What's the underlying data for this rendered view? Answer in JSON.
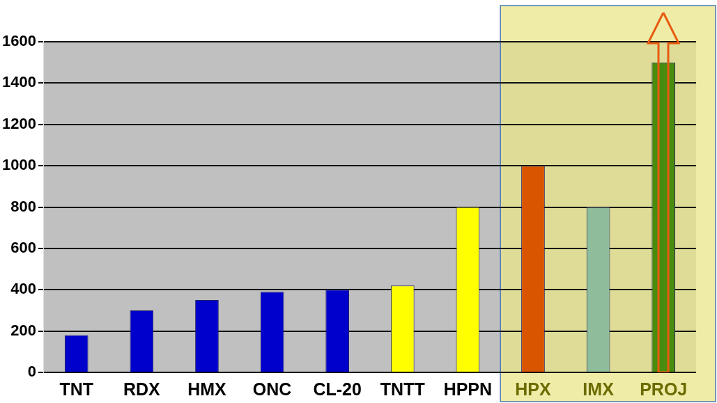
{
  "chart_data": {
    "type": "bar",
    "categories": [
      "TNT",
      "RDX",
      "HMX",
      "ONC",
      "CL-20",
      "TNTT",
      "HPPN",
      "HPX",
      "IMX",
      "PROJ"
    ],
    "values": [
      180,
      300,
      350,
      390,
      400,
      420,
      800,
      1000,
      800,
      1500
    ],
    "colors": [
      "#0000cc",
      "#0000cc",
      "#0000cc",
      "#0000cc",
      "#0000cc",
      "#ffff00",
      "#ffff00",
      "#d95500",
      "#8fbc9a",
      "#4a8c0e"
    ],
    "ylim": [
      0,
      1600
    ],
    "yticks": [
      0,
      200,
      400,
      600,
      800,
      1000,
      1200,
      1400,
      1600
    ],
    "grid": "y",
    "legend": false,
    "bands": [
      {
        "axis": "x",
        "from": "HPX",
        "to": "PROJ",
        "color": "#e8e68a"
      }
    ]
  }
}
